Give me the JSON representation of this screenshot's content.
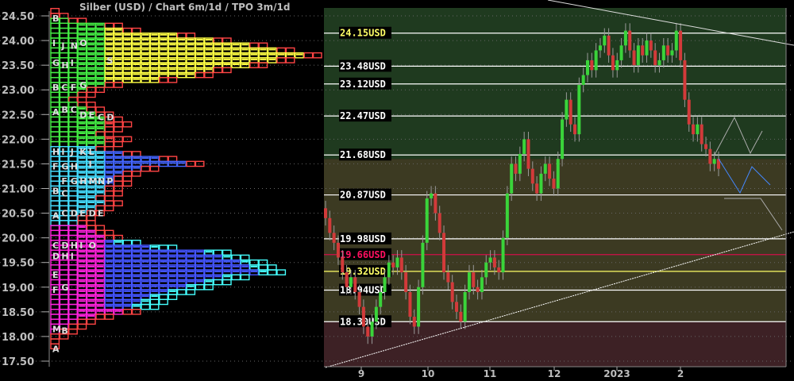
{
  "title": "Silber (USD) /  Chart 6m/1d / TPO 3m/1d",
  "colors": {
    "zone_upper": "#1f3a1f",
    "zone_middle": "#3c3a22",
    "zone_lower": "#3d2125",
    "up": "#3ad43a",
    "down": "#d23a3a",
    "highlight_red": "#ff1060",
    "highlight_yellow": "#ffff66"
  },
  "chart_data": {
    "type": "candlestick",
    "title": "Silber (USD) /  Chart 6m/1d / TPO 3m/1d",
    "ylim": [
      17.5,
      24.6
    ],
    "y_ticks": [
      "24.50",
      "24.00",
      "23.50",
      "23.00",
      "22.50",
      "22.00",
      "21.50",
      "21.00",
      "20.50",
      "20.00",
      "19.50",
      "19.00",
      "18.50",
      "18.00",
      "17.50"
    ],
    "x_ticks": [
      "9",
      "10",
      "11",
      "12",
      "2023",
      "2"
    ],
    "closes": [
      20.4,
      20.1,
      19.9,
      19.6,
      19.3,
      19.0,
      19.2,
      18.9,
      18.6,
      18.2,
      18.0,
      18.3,
      18.6,
      18.9,
      19.2,
      19.5,
      19.4,
      19.6,
      19.3,
      18.9,
      18.4,
      18.2,
      19.0,
      19.9,
      20.8,
      20.9,
      20.5,
      20.1,
      19.3,
      19.1,
      18.7,
      18.5,
      18.3,
      18.9,
      19.3,
      19.0,
      18.9,
      19.2,
      19.5,
      19.6,
      19.4,
      19.3,
      20.0,
      20.9,
      21.5,
      21.3,
      21.7,
      22.0,
      21.4,
      21.1,
      20.9,
      21.3,
      21.5,
      21.2,
      21.0,
      21.6,
      22.4,
      22.8,
      22.3,
      22.1,
      23.1,
      23.3,
      23.6,
      23.4,
      23.8,
      23.9,
      24.1,
      23.7,
      23.4,
      23.6,
      23.9,
      24.2,
      23.8,
      23.5,
      23.9,
      23.7,
      24.0,
      23.8,
      23.5,
      23.6,
      23.9,
      23.7,
      23.8,
      24.2,
      23.6,
      22.8,
      22.3,
      22.1,
      22.3,
      21.9,
      21.8,
      21.5,
      21.6,
      21.4
    ],
    "levels": [
      {
        "price": 24.15,
        "label": "24.15USD",
        "color": "#ffffff",
        "text": "#ffff66"
      },
      {
        "price": 23.48,
        "label": "23.48USD",
        "color": "#ffffff",
        "text": "#ffffff"
      },
      {
        "price": 23.12,
        "label": "23.12USD",
        "color": "#ffffff",
        "text": "#ffffff"
      },
      {
        "price": 22.47,
        "label": "22.47USD",
        "color": "#ffffff",
        "text": "#ffffff"
      },
      {
        "price": 21.68,
        "label": "21.68USD",
        "color": "#ffffff",
        "text": "#ffffff"
      },
      {
        "price": 20.87,
        "label": "20.87USD",
        "color": "#ffffff",
        "text": "#ffffff"
      },
      {
        "price": 19.98,
        "label": "19.98USD",
        "color": "#ffffff",
        "text": "#ffffff"
      },
      {
        "price": 19.66,
        "label": "19.66USD",
        "color": "#d0104a",
        "text": "#ff1060"
      },
      {
        "price": 19.32,
        "label": "19.32USD",
        "color": "#ffff66",
        "text": "#ffff66"
      },
      {
        "price": 18.94,
        "label": "18.94USD",
        "color": "#ffffff",
        "text": "#ffffff"
      },
      {
        "price": 18.3,
        "label": "18.30USD",
        "color": "#ffffff",
        "text": "#ffffff"
      }
    ],
    "zones": [
      {
        "from": 21.6,
        "to": 24.7,
        "name": "upper"
      },
      {
        "from": 18.3,
        "to": 21.6,
        "name": "middle"
      },
      {
        "from": 17.3,
        "to": 18.3,
        "name": "lower"
      }
    ],
    "tpo_profile": {
      "prices": [
        24.6,
        24.5,
        24.4,
        24.3,
        24.2,
        24.1,
        24.0,
        23.9,
        23.8,
        23.7,
        23.6,
        23.5,
        23.4,
        23.3,
        23.2,
        23.1,
        23.0,
        22.9,
        22.8,
        22.7,
        22.6,
        22.5,
        22.4,
        22.3,
        22.2,
        22.1,
        22.0,
        21.9,
        21.8,
        21.7,
        21.6,
        21.5,
        21.4,
        21.3,
        21.2,
        21.1,
        21.0,
        20.9,
        20.8,
        20.7,
        20.6,
        20.5,
        20.4,
        20.3,
        20.2,
        20.1,
        20.0,
        19.9,
        19.8,
        19.7,
        19.6,
        19.5,
        19.4,
        19.3,
        19.2,
        19.1,
        19.0,
        18.9,
        18.8,
        18.7,
        18.6,
        18.5,
        18.4,
        18.3,
        18.2,
        18.1,
        18.0,
        17.9,
        17.8
      ],
      "counts": [
        1,
        2,
        4,
        8,
        10,
        16,
        20,
        24,
        27,
        30,
        27,
        24,
        20,
        18,
        14,
        8,
        6,
        5,
        4,
        5,
        6,
        7,
        8,
        9,
        8,
        7,
        9,
        8,
        7,
        10,
        14,
        17,
        12,
        10,
        9,
        9,
        8,
        8,
        7,
        8,
        7,
        6,
        5,
        5,
        6,
        7,
        8,
        10,
        14,
        20,
        22,
        24,
        25,
        26,
        22,
        20,
        18,
        16,
        14,
        13,
        12,
        10,
        7,
        5,
        4,
        3,
        2,
        1,
        1
      ],
      "letters": [
        {
          "p": 24.45,
          "c": 0,
          "t": "B"
        },
        {
          "p": 23.95,
          "c": 0,
          "t": "I"
        },
        {
          "p": 23.9,
          "c": 1,
          "t": "J"
        },
        {
          "p": 23.9,
          "c": 2,
          "t": "N"
        },
        {
          "p": 23.95,
          "c": 3,
          "t": "O"
        },
        {
          "p": 23.55,
          "c": 0,
          "t": "G"
        },
        {
          "p": 23.5,
          "c": 1,
          "t": "H"
        },
        {
          "p": 23.55,
          "c": 2,
          "t": "I"
        },
        {
          "p": 23.6,
          "c": 6,
          "t": "S"
        },
        {
          "p": 23.05,
          "c": 0,
          "t": "B"
        },
        {
          "p": 23.05,
          "c": 1,
          "t": "C"
        },
        {
          "p": 23.05,
          "c": 2,
          "t": "F"
        },
        {
          "p": 23.1,
          "c": 3,
          "t": "G"
        },
        {
          "p": 22.55,
          "c": 0,
          "t": "A"
        },
        {
          "p": 22.6,
          "c": 1,
          "t": "B"
        },
        {
          "p": 22.6,
          "c": 2,
          "t": "C"
        },
        {
          "p": 22.5,
          "c": 3,
          "t": "D"
        },
        {
          "p": 22.5,
          "c": 4,
          "t": "E"
        },
        {
          "p": 22.45,
          "c": 5,
          "t": "C"
        },
        {
          "p": 22.45,
          "c": 6,
          "t": "D"
        },
        {
          "p": 21.75,
          "c": 0,
          "t": "H"
        },
        {
          "p": 21.75,
          "c": 1,
          "t": "I"
        },
        {
          "p": 21.75,
          "c": 2,
          "t": "J"
        },
        {
          "p": 21.75,
          "c": 3,
          "t": "K"
        },
        {
          "p": 21.75,
          "c": 4,
          "t": "L"
        },
        {
          "p": 21.45,
          "c": 0,
          "t": "F"
        },
        {
          "p": 21.45,
          "c": 1,
          "t": "G"
        },
        {
          "p": 21.45,
          "c": 2,
          "t": "H"
        },
        {
          "p": 21.5,
          "c": 4,
          "t": "I"
        },
        {
          "p": 21.15,
          "c": 1,
          "t": "F"
        },
        {
          "p": 21.15,
          "c": 2,
          "t": "G"
        },
        {
          "p": 21.15,
          "c": 3,
          "t": "H"
        },
        {
          "p": 21.15,
          "c": 4,
          "t": "M"
        },
        {
          "p": 21.15,
          "c": 5,
          "t": "N"
        },
        {
          "p": 21.15,
          "c": 6,
          "t": "P"
        },
        {
          "p": 20.95,
          "c": 0,
          "t": "B"
        },
        {
          "p": 20.9,
          "c": 1,
          "t": "C"
        },
        {
          "p": 20.45,
          "c": 0,
          "t": "A"
        },
        {
          "p": 20.5,
          "c": 1,
          "t": "C"
        },
        {
          "p": 20.5,
          "c": 2,
          "t": "D"
        },
        {
          "p": 20.5,
          "c": 3,
          "t": "E"
        },
        {
          "p": 20.5,
          "c": 4,
          "t": "D"
        },
        {
          "p": 20.5,
          "c": 5,
          "t": "E"
        },
        {
          "p": 19.85,
          "c": 0,
          "t": "C"
        },
        {
          "p": 19.85,
          "c": 1,
          "t": "D"
        },
        {
          "p": 19.85,
          "c": 2,
          "t": "H"
        },
        {
          "p": 19.85,
          "c": 3,
          "t": "I"
        },
        {
          "p": 19.85,
          "c": 4,
          "t": "O"
        },
        {
          "p": 19.63,
          "c": 0,
          "t": "D"
        },
        {
          "p": 19.63,
          "c": 1,
          "t": "H"
        },
        {
          "p": 19.63,
          "c": 2,
          "t": "I"
        },
        {
          "p": 19.25,
          "c": 0,
          "t": "E"
        },
        {
          "p": 18.95,
          "c": 0,
          "t": "F"
        },
        {
          "p": 19.0,
          "c": 1,
          "t": "G"
        },
        {
          "p": 18.15,
          "c": 0,
          "t": "M"
        },
        {
          "p": 18.12,
          "c": 1,
          "t": "B"
        },
        {
          "p": 17.75,
          "c": 0,
          "t": "A"
        }
      ]
    }
  }
}
